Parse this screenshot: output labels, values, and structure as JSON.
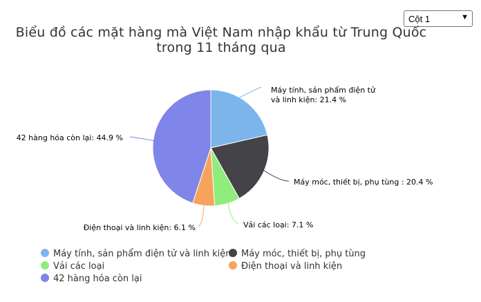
{
  "select": {
    "value": "Cột 1",
    "chevron_icon": "chevron-down-icon"
  },
  "chart_data": {
    "type": "pie",
    "title_lines": [
      "Biểu đồ các mặt hàng mà Việt Nam nhập khẩu từ Trung Quốc",
      "trong 11 tháng qua"
    ],
    "slices": [
      {
        "name": "Máy tính, sản phẩm điện tử và linh kiện",
        "value": 21.4,
        "color": "#7cb5ec",
        "label_lines": [
          "Máy tính, sản phẩm điện tử",
          "và linh kiện: 21.4 %"
        ]
      },
      {
        "name": "Máy móc, thiết bị, phụ tùng",
        "value": 20.4,
        "color": "#434348",
        "label_lines": [
          "Máy móc, thiết bị, phụ tùng : 20.4 %"
        ]
      },
      {
        "name": "Vải các loại",
        "value": 7.1,
        "color": "#90ed7d",
        "label_lines": [
          "Vải các loại: 7.1 %"
        ]
      },
      {
        "name": "Điện thoại và linh kiện",
        "value": 6.1,
        "color": "#f7a35c",
        "label_lines": [
          "Điện thoại và linh kiện: 6.1 %"
        ]
      },
      {
        "name": "42 hàng hóa còn lại",
        "value": 44.9,
        "color": "#8085e9",
        "label_lines": [
          "42 hàng hóa còn lại: 44.9 %"
        ]
      }
    ],
    "legend": "bottom-left"
  }
}
